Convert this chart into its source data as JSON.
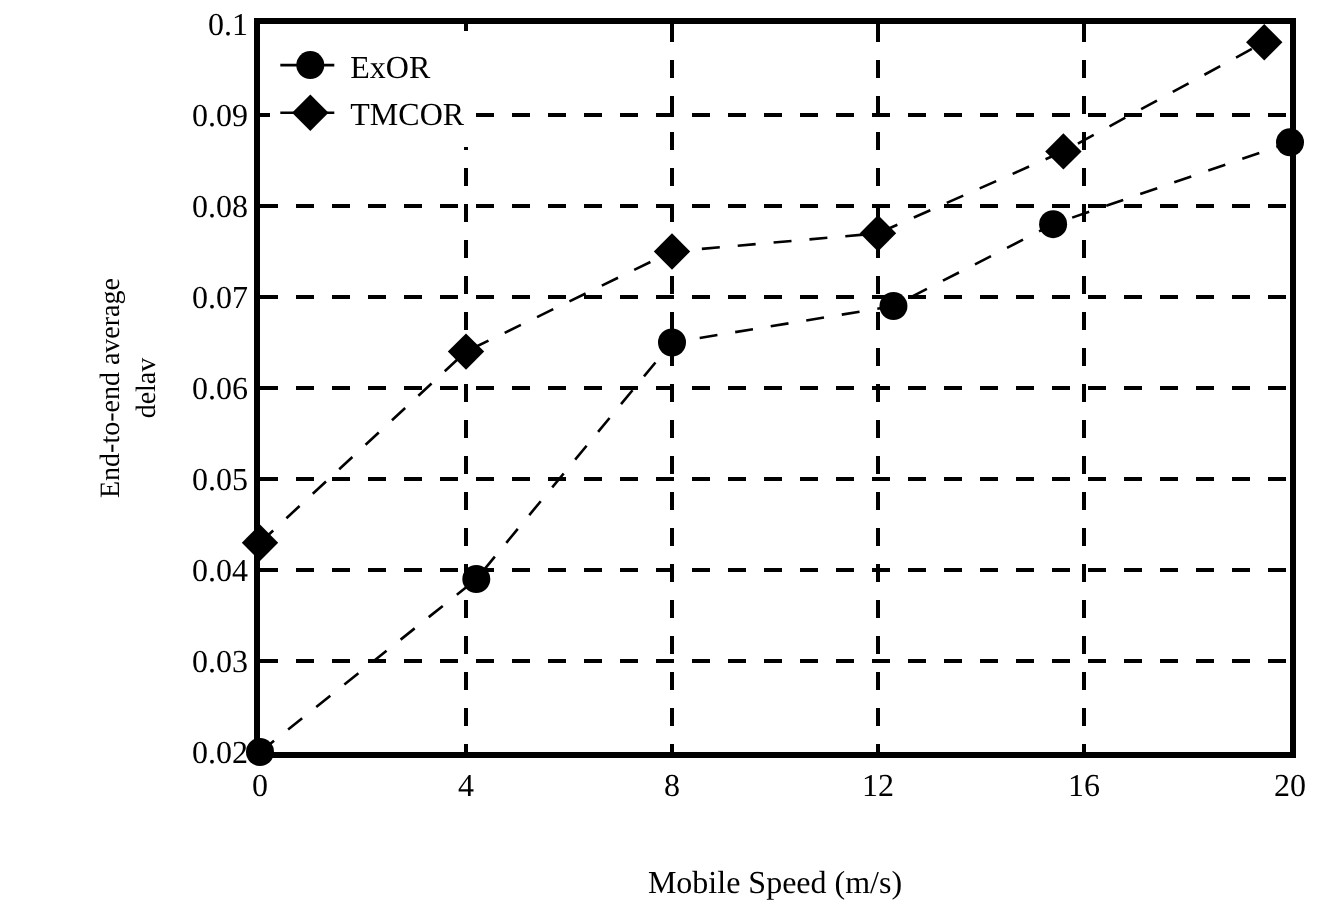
{
  "chart_data": {
    "type": "line",
    "xlabel": "Mobile Speed (m/s)",
    "ylabel": "End-to-end average\ndelav",
    "xlim": [
      0,
      20
    ],
    "ylim": [
      0.02,
      0.1
    ],
    "xticks": [
      0,
      4,
      8,
      12,
      16,
      20
    ],
    "yticks": [
      0.02,
      0.03,
      0.04,
      0.05,
      0.06,
      0.07,
      0.08,
      0.09,
      0.1
    ],
    "grid": true,
    "legend": "top left",
    "line_style": "dashed",
    "series": [
      {
        "name": "ExOR",
        "color": "#000000",
        "marker": "circle",
        "x": [
          0,
          4.2,
          8,
          12.3,
          15.4,
          20
        ],
        "values": [
          0.02,
          0.039,
          0.065,
          0.069,
          0.078,
          0.087
        ]
      },
      {
        "name": "TMCOR",
        "color": "#000000",
        "marker": "diamond",
        "x": [
          0,
          4,
          8,
          12,
          15.6,
          19.5
        ],
        "values": [
          0.043,
          0.064,
          0.075,
          0.077,
          0.086,
          0.098
        ]
      }
    ]
  }
}
